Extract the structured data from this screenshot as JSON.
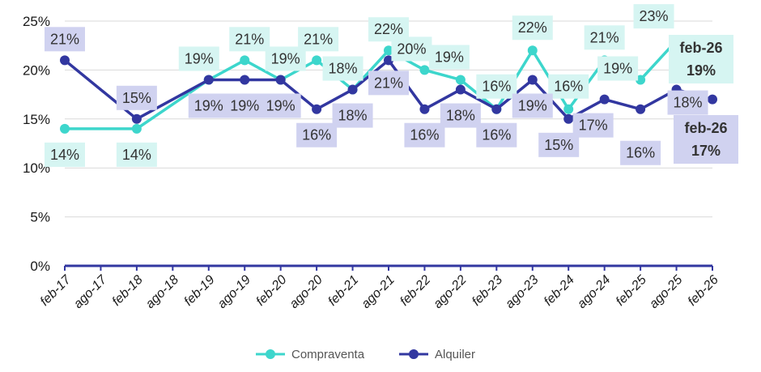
{
  "chart_data": {
    "type": "line",
    "title": "",
    "xlabel": "",
    "ylabel": "",
    "ylim": [
      0,
      25
    ],
    "y_ticks": [
      "0%",
      "5%",
      "10%",
      "15%",
      "20%",
      "25%"
    ],
    "grid": "horizontal",
    "legend_position": "bottom",
    "categories": [
      "feb-17",
      "ago-17",
      "feb-18",
      "ago-18",
      "feb-19",
      "ago-19",
      "feb-20",
      "ago-20",
      "feb-21",
      "ago-21",
      "feb-22",
      "ago-22",
      "feb-23",
      "ago-23",
      "feb-24",
      "ago-24",
      "feb-25",
      "ago-25",
      "feb-26"
    ],
    "series": [
      {
        "name": "Compraventa",
        "color": "#3DD6CC",
        "label_bg": "#D6F5F2",
        "x": [
          "feb-17",
          "feb-18",
          "feb-19",
          "ago-19",
          "feb-20",
          "ago-20",
          "feb-21",
          "ago-21",
          "feb-22",
          "ago-22",
          "feb-23",
          "ago-23",
          "feb-24",
          "ago-24",
          "feb-25",
          "ago-25",
          "feb-26"
        ],
        "values": [
          14,
          14,
          19,
          21,
          19,
          21,
          18,
          22,
          20,
          19,
          16,
          22,
          16,
          21,
          19,
          23,
          19
        ],
        "labels": [
          "14%",
          "14%",
          "19%",
          "21%",
          "19%",
          "21%",
          "18%",
          "22%",
          "20%",
          "19%",
          "16%",
          "22%",
          "16%",
          "21%",
          "19%",
          "23%",
          "19%"
        ],
        "final_label": [
          "feb-26",
          "19%"
        ]
      },
      {
        "name": "Alquiler",
        "color": "#3237A0",
        "label_bg": "#D0D2F0",
        "x": [
          "feb-17",
          "feb-18",
          "feb-19",
          "ago-19",
          "feb-20",
          "ago-20",
          "feb-21",
          "ago-21",
          "feb-22",
          "ago-22",
          "feb-23",
          "ago-23",
          "feb-24",
          "ago-24",
          "feb-25",
          "ago-25",
          "feb-26"
        ],
        "values": [
          21,
          15,
          19,
          19,
          19,
          16,
          18,
          21,
          16,
          18,
          16,
          19,
          15,
          17,
          16,
          18,
          17
        ],
        "labels": [
          "21%",
          "15%",
          "19%",
          "19%",
          "19%",
          "16%",
          "18%",
          "21%",
          "16%",
          "18%",
          "16%",
          "19%",
          "15%",
          "17%",
          "16%",
          "18%",
          "17%"
        ],
        "final_label": [
          "feb-26",
          "17%"
        ]
      }
    ]
  }
}
